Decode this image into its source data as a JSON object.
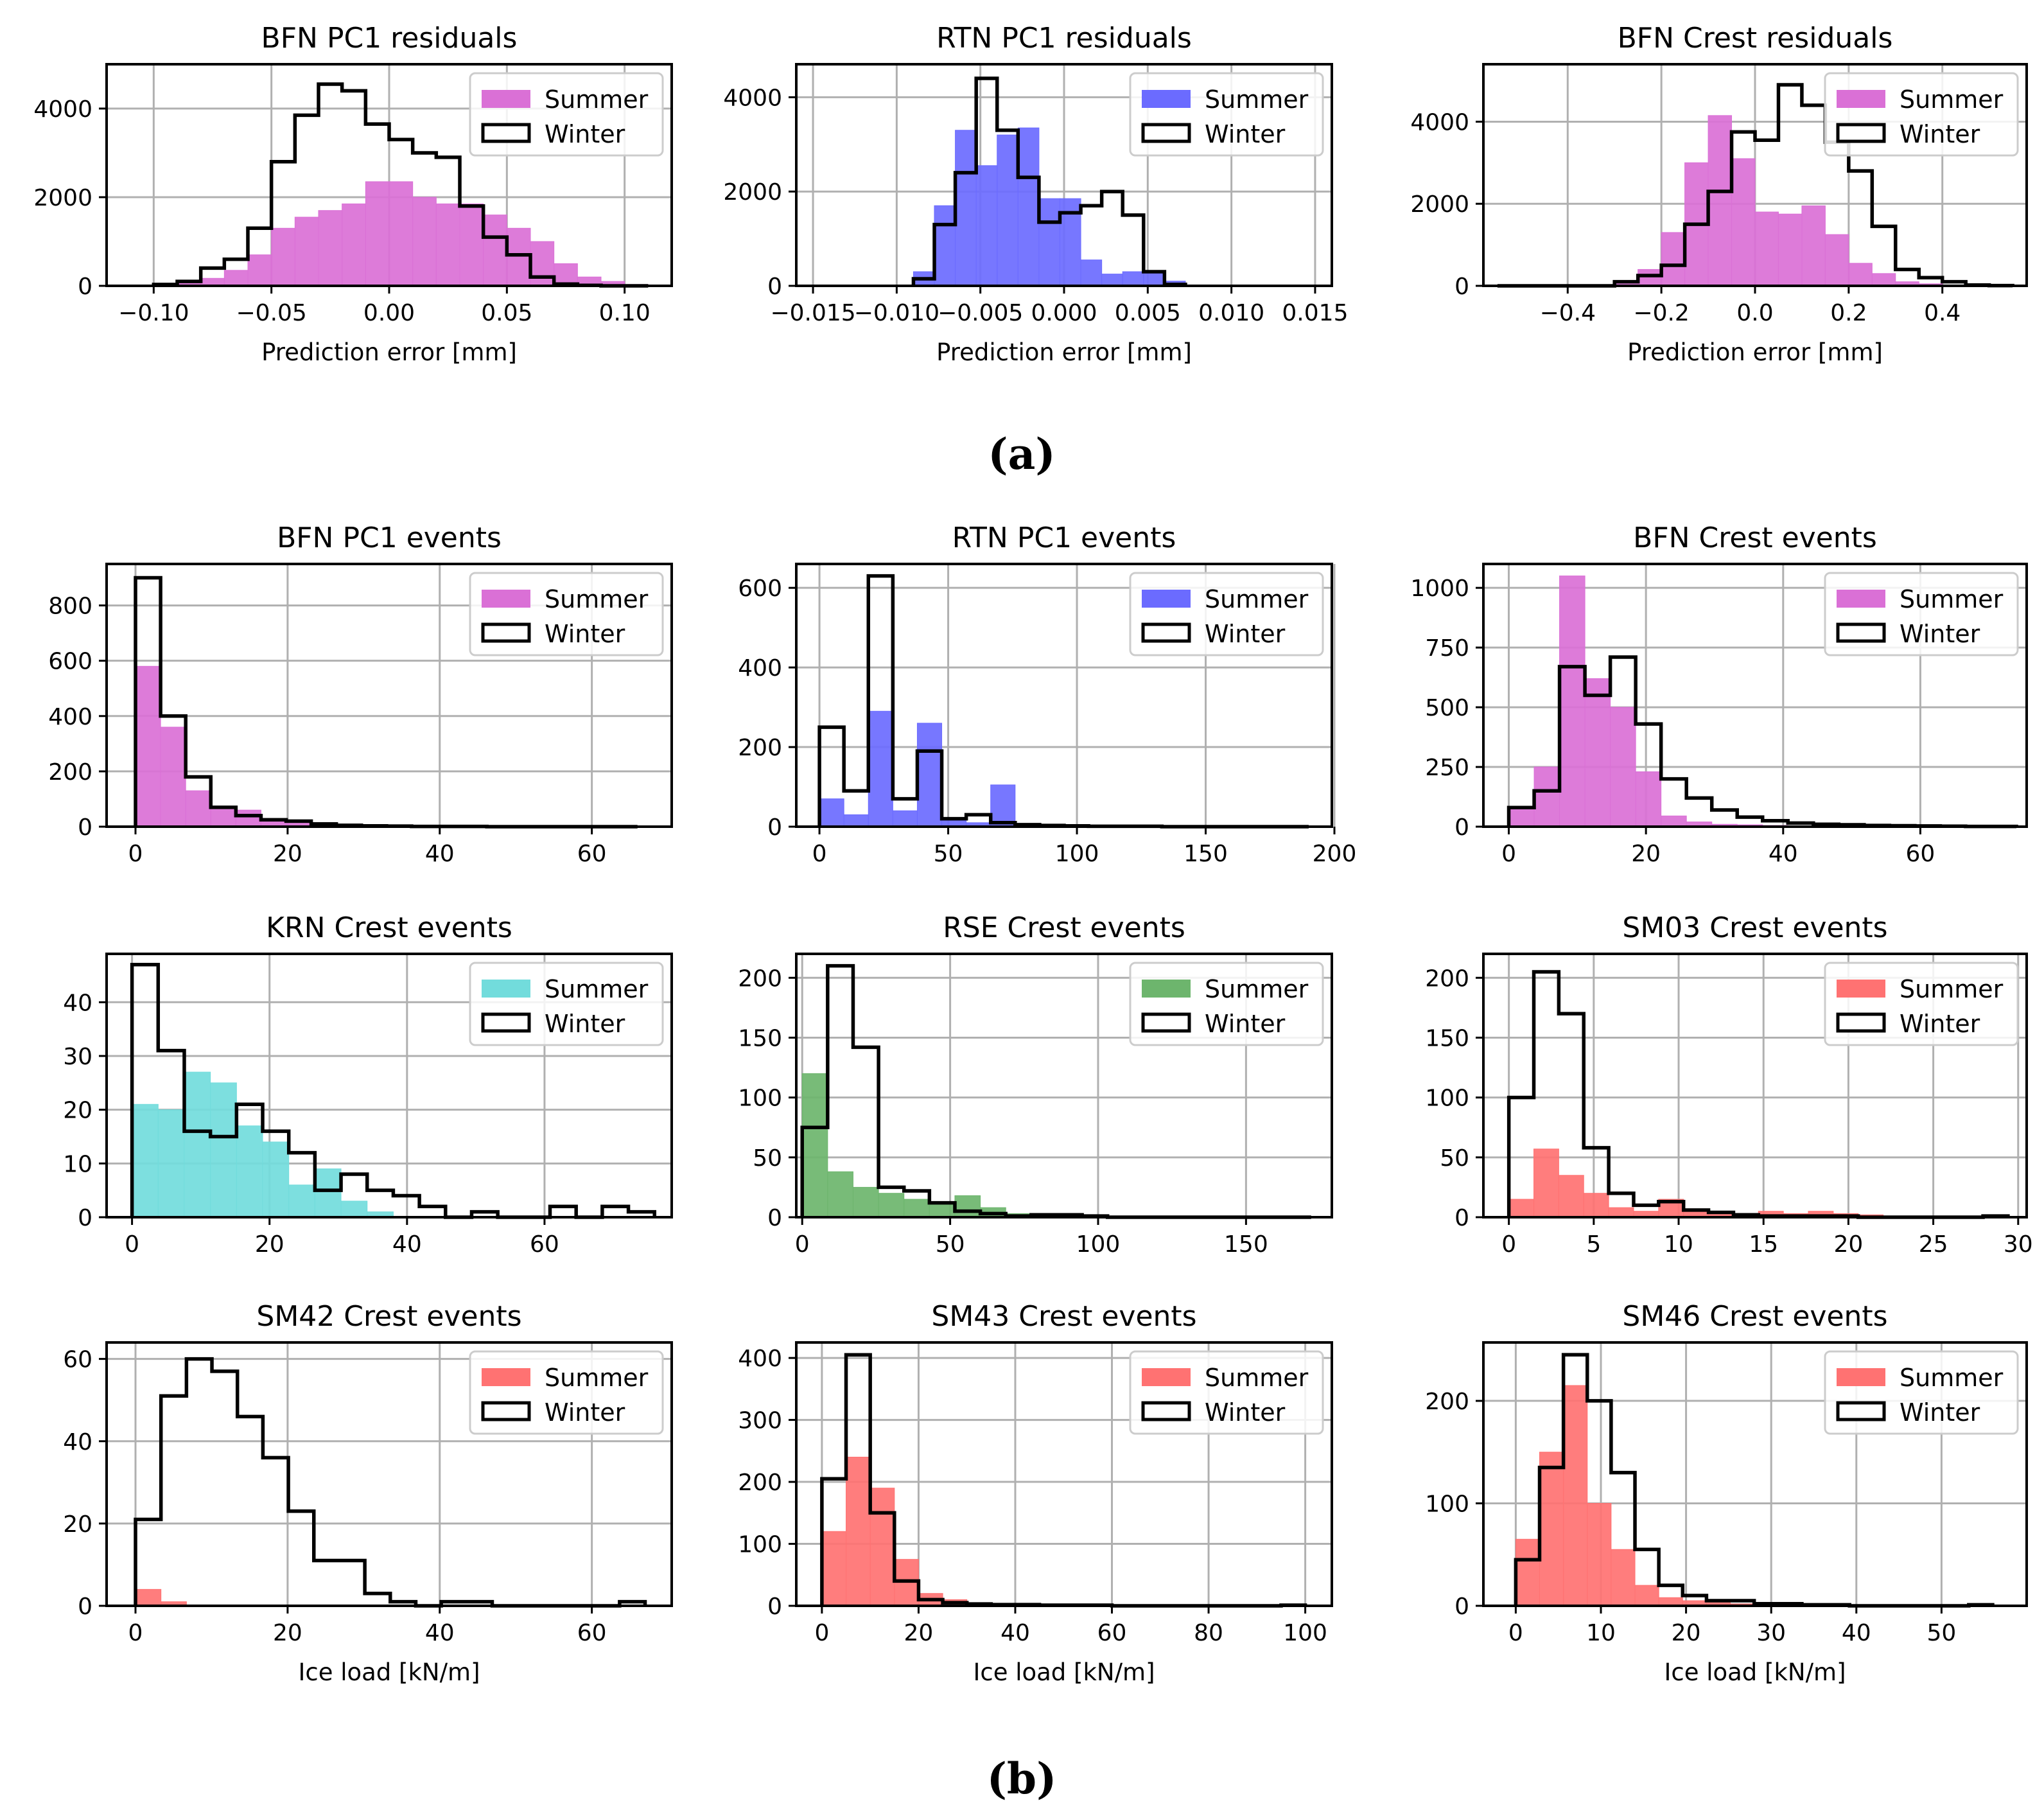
{
  "figure": {
    "label_a": "(a)",
    "label_b": "(b)"
  },
  "colors": {
    "magenta": "#da70d6",
    "blue": "#6b6bff",
    "cyan": "#72dcdc",
    "green": "#6db56d",
    "red": "#ff7272",
    "winter": "#000000",
    "grid": "#b0b0b0"
  },
  "chart_data": [
    {
      "id": "p0",
      "type": "histogram",
      "title": "BFN PC1 residuals",
      "xlabel": "Prediction error [mm]",
      "xlim": [
        -0.12,
        0.12
      ],
      "ylim": [
        0,
        5000
      ],
      "xticks": [
        -0.1,
        -0.05,
        0.0,
        0.05,
        0.1
      ],
      "xtick_labels": [
        "−0.10",
        "−0.05",
        "0.00",
        "0.05",
        "0.10"
      ],
      "yticks": [
        0,
        2000,
        4000
      ],
      "ytick_labels": [
        "0",
        "2000",
        "4000"
      ],
      "summer_color": "magenta",
      "legend": {
        "summer": "Summer",
        "winter": "Winter"
      },
      "summer": {
        "x0": -0.1,
        "width": 0.01,
        "values": [
          20,
          60,
          170,
          350,
          700,
          1300,
          1550,
          1700,
          1850,
          2350,
          2350,
          2000,
          1850,
          1850,
          1600,
          1300,
          1000,
          500,
          200,
          100,
          30
        ]
      },
      "winter": {
        "x0": -0.1,
        "width": 0.01,
        "values": [
          30,
          100,
          400,
          600,
          1300,
          2800,
          3850,
          4550,
          4400,
          3650,
          3300,
          3000,
          2900,
          1800,
          1100,
          700,
          200,
          40,
          10,
          0,
          0
        ]
      }
    },
    {
      "id": "p1",
      "type": "histogram",
      "title": "RTN PC1 residuals",
      "xlabel": "Prediction error [mm]",
      "xlim": [
        -0.016,
        0.016
      ],
      "ylim": [
        0,
        4700
      ],
      "xticks": [
        -0.015,
        -0.01,
        -0.005,
        0.0,
        0.005,
        0.01,
        0.015
      ],
      "xtick_labels": [
        "−0.015",
        "−0.010",
        "−0.005",
        "0.000",
        "0.005",
        "0.010",
        "0.015"
      ],
      "yticks": [
        0,
        2000,
        4000
      ],
      "ytick_labels": [
        "0",
        "2000",
        "4000"
      ],
      "summer_color": "blue",
      "legend": {
        "summer": "Summer",
        "winter": "Winter"
      },
      "summer": {
        "x0": -0.009,
        "width": 0.00125,
        "values": [
          300,
          1700,
          3300,
          2550,
          3200,
          3350,
          1850,
          1850,
          550,
          250,
          300,
          300,
          100
        ]
      },
      "winter": {
        "x0": -0.009,
        "width": 0.00125,
        "values": [
          150,
          1300,
          2400,
          4400,
          3300,
          2300,
          1350,
          1550,
          1700,
          2000,
          1500,
          300,
          30
        ]
      }
    },
    {
      "id": "p2",
      "type": "histogram",
      "title": "BFN Crest residuals",
      "xlabel": "Prediction error [mm]",
      "xlim": [
        -0.58,
        0.58
      ],
      "ylim": [
        0,
        5400
      ],
      "xticks": [
        -0.4,
        -0.2,
        0.0,
        0.2,
        0.4
      ],
      "xtick_labels": [
        "−0.4",
        "−0.2",
        "0.0",
        "0.2",
        "0.4"
      ],
      "yticks": [
        0,
        2000,
        4000
      ],
      "ytick_labels": [
        "0",
        "2000",
        "4000"
      ],
      "summer_color": "magenta",
      "legend": {
        "summer": "Summer",
        "winter": "Winter"
      },
      "summer": {
        "x0": -0.3,
        "width": 0.05,
        "values": [
          100,
          400,
          1300,
          3000,
          4150,
          3100,
          1800,
          1750,
          1950,
          1250,
          550,
          300,
          100,
          50
        ]
      },
      "winter": {
        "x0": -0.55,
        "width": 0.05,
        "values": [
          0,
          0,
          0,
          0,
          0,
          100,
          250,
          500,
          1500,
          2300,
          3750,
          3550,
          4900,
          4400,
          3500,
          2800,
          1450,
          400,
          200,
          100,
          20,
          5
        ]
      }
    },
    {
      "id": "p3",
      "type": "histogram",
      "title": "BFN PC1 events",
      "xlabel": "",
      "xlim": [
        -3.8,
        70.5
      ],
      "ylim": [
        0,
        950
      ],
      "xticks": [
        0,
        20,
        40,
        60
      ],
      "xtick_labels": [
        "0",
        "20",
        "40",
        "60"
      ],
      "yticks": [
        0,
        200,
        400,
        600,
        800
      ],
      "ytick_labels": [
        "0",
        "200",
        "400",
        "600",
        "800"
      ],
      "summer_color": "magenta",
      "legend": {
        "summer": "Summer",
        "winter": "Winter"
      },
      "summer": {
        "x0": 0,
        "width": 3.3,
        "values": [
          580,
          360,
          130,
          70,
          60,
          25,
          20,
          15,
          8,
          5,
          3,
          2,
          2,
          1,
          1,
          0,
          0,
          0,
          0,
          0
        ]
      },
      "winter": {
        "x0": 0,
        "width": 3.3,
        "values": [
          900,
          400,
          180,
          70,
          40,
          25,
          20,
          10,
          5,
          3,
          2,
          1,
          1,
          1,
          0,
          0,
          0,
          0,
          0,
          0
        ]
      }
    },
    {
      "id": "p4",
      "type": "histogram",
      "title": "RTN PC1 events",
      "xlabel": "",
      "xlim": [
        -9,
        199
      ],
      "ylim": [
        0,
        660
      ],
      "xticks": [
        0,
        50,
        100,
        150,
        200
      ],
      "xtick_labels": [
        "0",
        "50",
        "100",
        "150",
        "200"
      ],
      "yticks": [
        0,
        200,
        400,
        600
      ],
      "ytick_labels": [
        "0",
        "200",
        "400",
        "600"
      ],
      "summer_color": "blue",
      "legend": {
        "summer": "Summer",
        "winter": "Winter"
      },
      "summer": {
        "x0": 0,
        "width": 9.5,
        "values": [
          70,
          30,
          290,
          40,
          260,
          20,
          10,
          105,
          8,
          5,
          3,
          2,
          1,
          1,
          0,
          0,
          0,
          0,
          0,
          0
        ]
      },
      "winter": {
        "x0": 0,
        "width": 9.5,
        "values": [
          250,
          90,
          630,
          70,
          190,
          20,
          30,
          10,
          5,
          3,
          2,
          1,
          1,
          1,
          0,
          0,
          0,
          0,
          0,
          0
        ]
      }
    },
    {
      "id": "p5",
      "type": "histogram",
      "title": "BFN Crest events",
      "xlabel": "",
      "xlim": [
        -3.7,
        75.5
      ],
      "ylim": [
        0,
        1100
      ],
      "xticks": [
        0,
        20,
        40,
        60
      ],
      "xtick_labels": [
        "0",
        "20",
        "40",
        "60"
      ],
      "yticks": [
        0,
        250,
        500,
        750,
        1000
      ],
      "ytick_labels": [
        "0",
        "250",
        "500",
        "750",
        "1000"
      ],
      "summer_color": "magenta",
      "legend": {
        "summer": "Summer",
        "winter": "Winter"
      },
      "summer": {
        "x0": 0,
        "width": 3.7,
        "values": [
          80,
          250,
          1050,
          620,
          500,
          230,
          45,
          20,
          10,
          8,
          5,
          3,
          2,
          2,
          1,
          1,
          0,
          0,
          0,
          0
        ]
      },
      "winter": {
        "x0": 0,
        "width": 3.7,
        "values": [
          80,
          150,
          670,
          550,
          710,
          430,
          200,
          120,
          70,
          40,
          25,
          15,
          10,
          8,
          5,
          4,
          3,
          2,
          1,
          1
        ]
      }
    },
    {
      "id": "p6",
      "type": "histogram",
      "title": "KRN Crest events",
      "xlabel": "",
      "xlim": [
        -3.7,
        78.5
      ],
      "ylim": [
        0,
        49
      ],
      "xticks": [
        0,
        20,
        40,
        60
      ],
      "xtick_labels": [
        "0",
        "20",
        "40",
        "60"
      ],
      "yticks": [
        0,
        10,
        20,
        30,
        40
      ],
      "ytick_labels": [
        "0",
        "10",
        "20",
        "30",
        "40"
      ],
      "summer_color": "cyan",
      "legend": {
        "summer": "Summer",
        "winter": "Winter"
      },
      "summer": {
        "x0": 0,
        "width": 3.8,
        "values": [
          21,
          20,
          27,
          25,
          17,
          14,
          6,
          9,
          3,
          1,
          0,
          0,
          0,
          0,
          0,
          0,
          0,
          0,
          0,
          0
        ]
      },
      "winter": {
        "x0": 0,
        "width": 3.8,
        "values": [
          47,
          31,
          16,
          15,
          21,
          16,
          12,
          5,
          8,
          5,
          4,
          2,
          0,
          1,
          0,
          0,
          2,
          0,
          2,
          1
        ]
      }
    },
    {
      "id": "p7",
      "type": "histogram",
      "title": "RSE Crest events",
      "xlabel": "",
      "xlim": [
        -2,
        179
      ],
      "ylim": [
        0,
        220
      ],
      "xticks": [
        0,
        50,
        100,
        150
      ],
      "xtick_labels": [
        "0",
        "50",
        "100",
        "150"
      ],
      "yticks": [
        0,
        50,
        100,
        150,
        200
      ],
      "ytick_labels": [
        "0",
        "50",
        "100",
        "150",
        "200"
      ],
      "summer_color": "green",
      "legend": {
        "summer": "Summer",
        "winter": "Winter"
      },
      "summer": {
        "x0": 0,
        "width": 8.6,
        "values": [
          120,
          38,
          25,
          20,
          15,
          12,
          18,
          8,
          3,
          2,
          1,
          1,
          0,
          0,
          0,
          0,
          0,
          0,
          0,
          0
        ]
      },
      "winter": {
        "x0": 0,
        "width": 8.6,
        "values": [
          75,
          210,
          142,
          25,
          22,
          12,
          5,
          3,
          1,
          2,
          2,
          1,
          0,
          0,
          0,
          0,
          0,
          0,
          0,
          0
        ]
      }
    },
    {
      "id": "p8",
      "type": "histogram",
      "title": "SM03 Crest events",
      "xlabel": "",
      "xlim": [
        -1.5,
        30.5
      ],
      "ylim": [
        0,
        220
      ],
      "xticks": [
        0,
        5,
        10,
        15,
        20,
        25,
        30
      ],
      "xtick_labels": [
        "0",
        "5",
        "10",
        "15",
        "20",
        "25",
        "30"
      ],
      "yticks": [
        0,
        50,
        100,
        150,
        200
      ],
      "ytick_labels": [
        "0",
        "50",
        "100",
        "150",
        "200"
      ],
      "summer_color": "red",
      "legend": {
        "summer": "Summer",
        "winter": "Winter"
      },
      "summer": {
        "x0": 0,
        "width": 1.47,
        "values": [
          15,
          57,
          35,
          20,
          8,
          5,
          15,
          7,
          5,
          3,
          5,
          3,
          5,
          3,
          2,
          1,
          0,
          0,
          0,
          0
        ]
      },
      "winter": {
        "x0": 0,
        "width": 1.47,
        "values": [
          100,
          205,
          170,
          58,
          20,
          10,
          13,
          6,
          4,
          2,
          1,
          1,
          1,
          1,
          0,
          0,
          0,
          0,
          0,
          1
        ]
      }
    },
    {
      "id": "p9",
      "type": "histogram",
      "title": "SM42 Crest events",
      "xlabel": "Ice load [kN/m]",
      "xlim": [
        -3.8,
        70.5
      ],
      "ylim": [
        0,
        64
      ],
      "xticks": [
        0,
        20,
        40,
        60
      ],
      "xtick_labels": [
        "0",
        "20",
        "40",
        "60"
      ],
      "yticks": [
        0,
        20,
        40,
        60
      ],
      "ytick_labels": [
        "0",
        "20",
        "40",
        "60"
      ],
      "summer_color": "red",
      "legend": {
        "summer": "Summer",
        "winter": "Winter"
      },
      "summer": {
        "x0": 0,
        "width": 3.35,
        "values": [
          4,
          1,
          0,
          0,
          0,
          0,
          0,
          0,
          0,
          0,
          0,
          0,
          0,
          0,
          0,
          0,
          0,
          0,
          0,
          0
        ]
      },
      "winter": {
        "x0": 0,
        "width": 3.35,
        "values": [
          21,
          51,
          60,
          57,
          46,
          36,
          23,
          11,
          11,
          3,
          1,
          0,
          1,
          1,
          0,
          0,
          0,
          0,
          0,
          1
        ]
      }
    },
    {
      "id": "p10",
      "type": "histogram",
      "title": "SM43 Crest events",
      "xlabel": "Ice load [kN/m]",
      "xlim": [
        -5.3,
        105.5
      ],
      "ylim": [
        0,
        425
      ],
      "xticks": [
        0,
        20,
        40,
        60,
        80,
        100
      ],
      "xtick_labels": [
        "0",
        "20",
        "40",
        "60",
        "80",
        "100"
      ],
      "yticks": [
        0,
        100,
        200,
        300,
        400
      ],
      "ytick_labels": [
        "0",
        "100",
        "200",
        "300",
        "400"
      ],
      "summer_color": "red",
      "legend": {
        "summer": "Summer",
        "winter": "Winter"
      },
      "summer": {
        "x0": 0,
        "width": 5,
        "values": [
          120,
          240,
          190,
          75,
          20,
          10,
          5,
          3,
          2,
          2,
          1,
          1,
          0,
          0,
          0,
          0,
          0,
          0,
          0,
          0
        ]
      },
      "winter": {
        "x0": 0,
        "width": 5,
        "values": [
          205,
          405,
          150,
          40,
          10,
          5,
          3,
          2,
          2,
          1,
          1,
          1,
          0,
          0,
          0,
          0,
          0,
          0,
          0,
          1
        ]
      }
    },
    {
      "id": "p11",
      "type": "histogram",
      "title": "SM46 Crest events",
      "xlabel": "Ice load [kN/m]",
      "xlim": [
        -3.8,
        60
      ],
      "ylim": [
        0,
        257
      ],
      "xticks": [
        0,
        10,
        20,
        30,
        40,
        50
      ],
      "xtick_labels": [
        "0",
        "10",
        "20",
        "30",
        "40",
        "50"
      ],
      "yticks": [
        0,
        100,
        200
      ],
      "ytick_labels": [
        "0",
        "100",
        "200"
      ],
      "summer_color": "red",
      "legend": {
        "summer": "Summer",
        "winter": "Winter"
      },
      "summer": {
        "x0": 0,
        "width": 2.8,
        "values": [
          65,
          150,
          215,
          100,
          55,
          20,
          8,
          5,
          3,
          2,
          2,
          1,
          1,
          0,
          0,
          0,
          0,
          0,
          0,
          0
        ]
      },
      "winter": {
        "x0": 0,
        "width": 2.8,
        "values": [
          45,
          135,
          245,
          200,
          130,
          55,
          20,
          10,
          5,
          5,
          2,
          2,
          1,
          1,
          0,
          0,
          0,
          0,
          0,
          1
        ]
      }
    }
  ]
}
